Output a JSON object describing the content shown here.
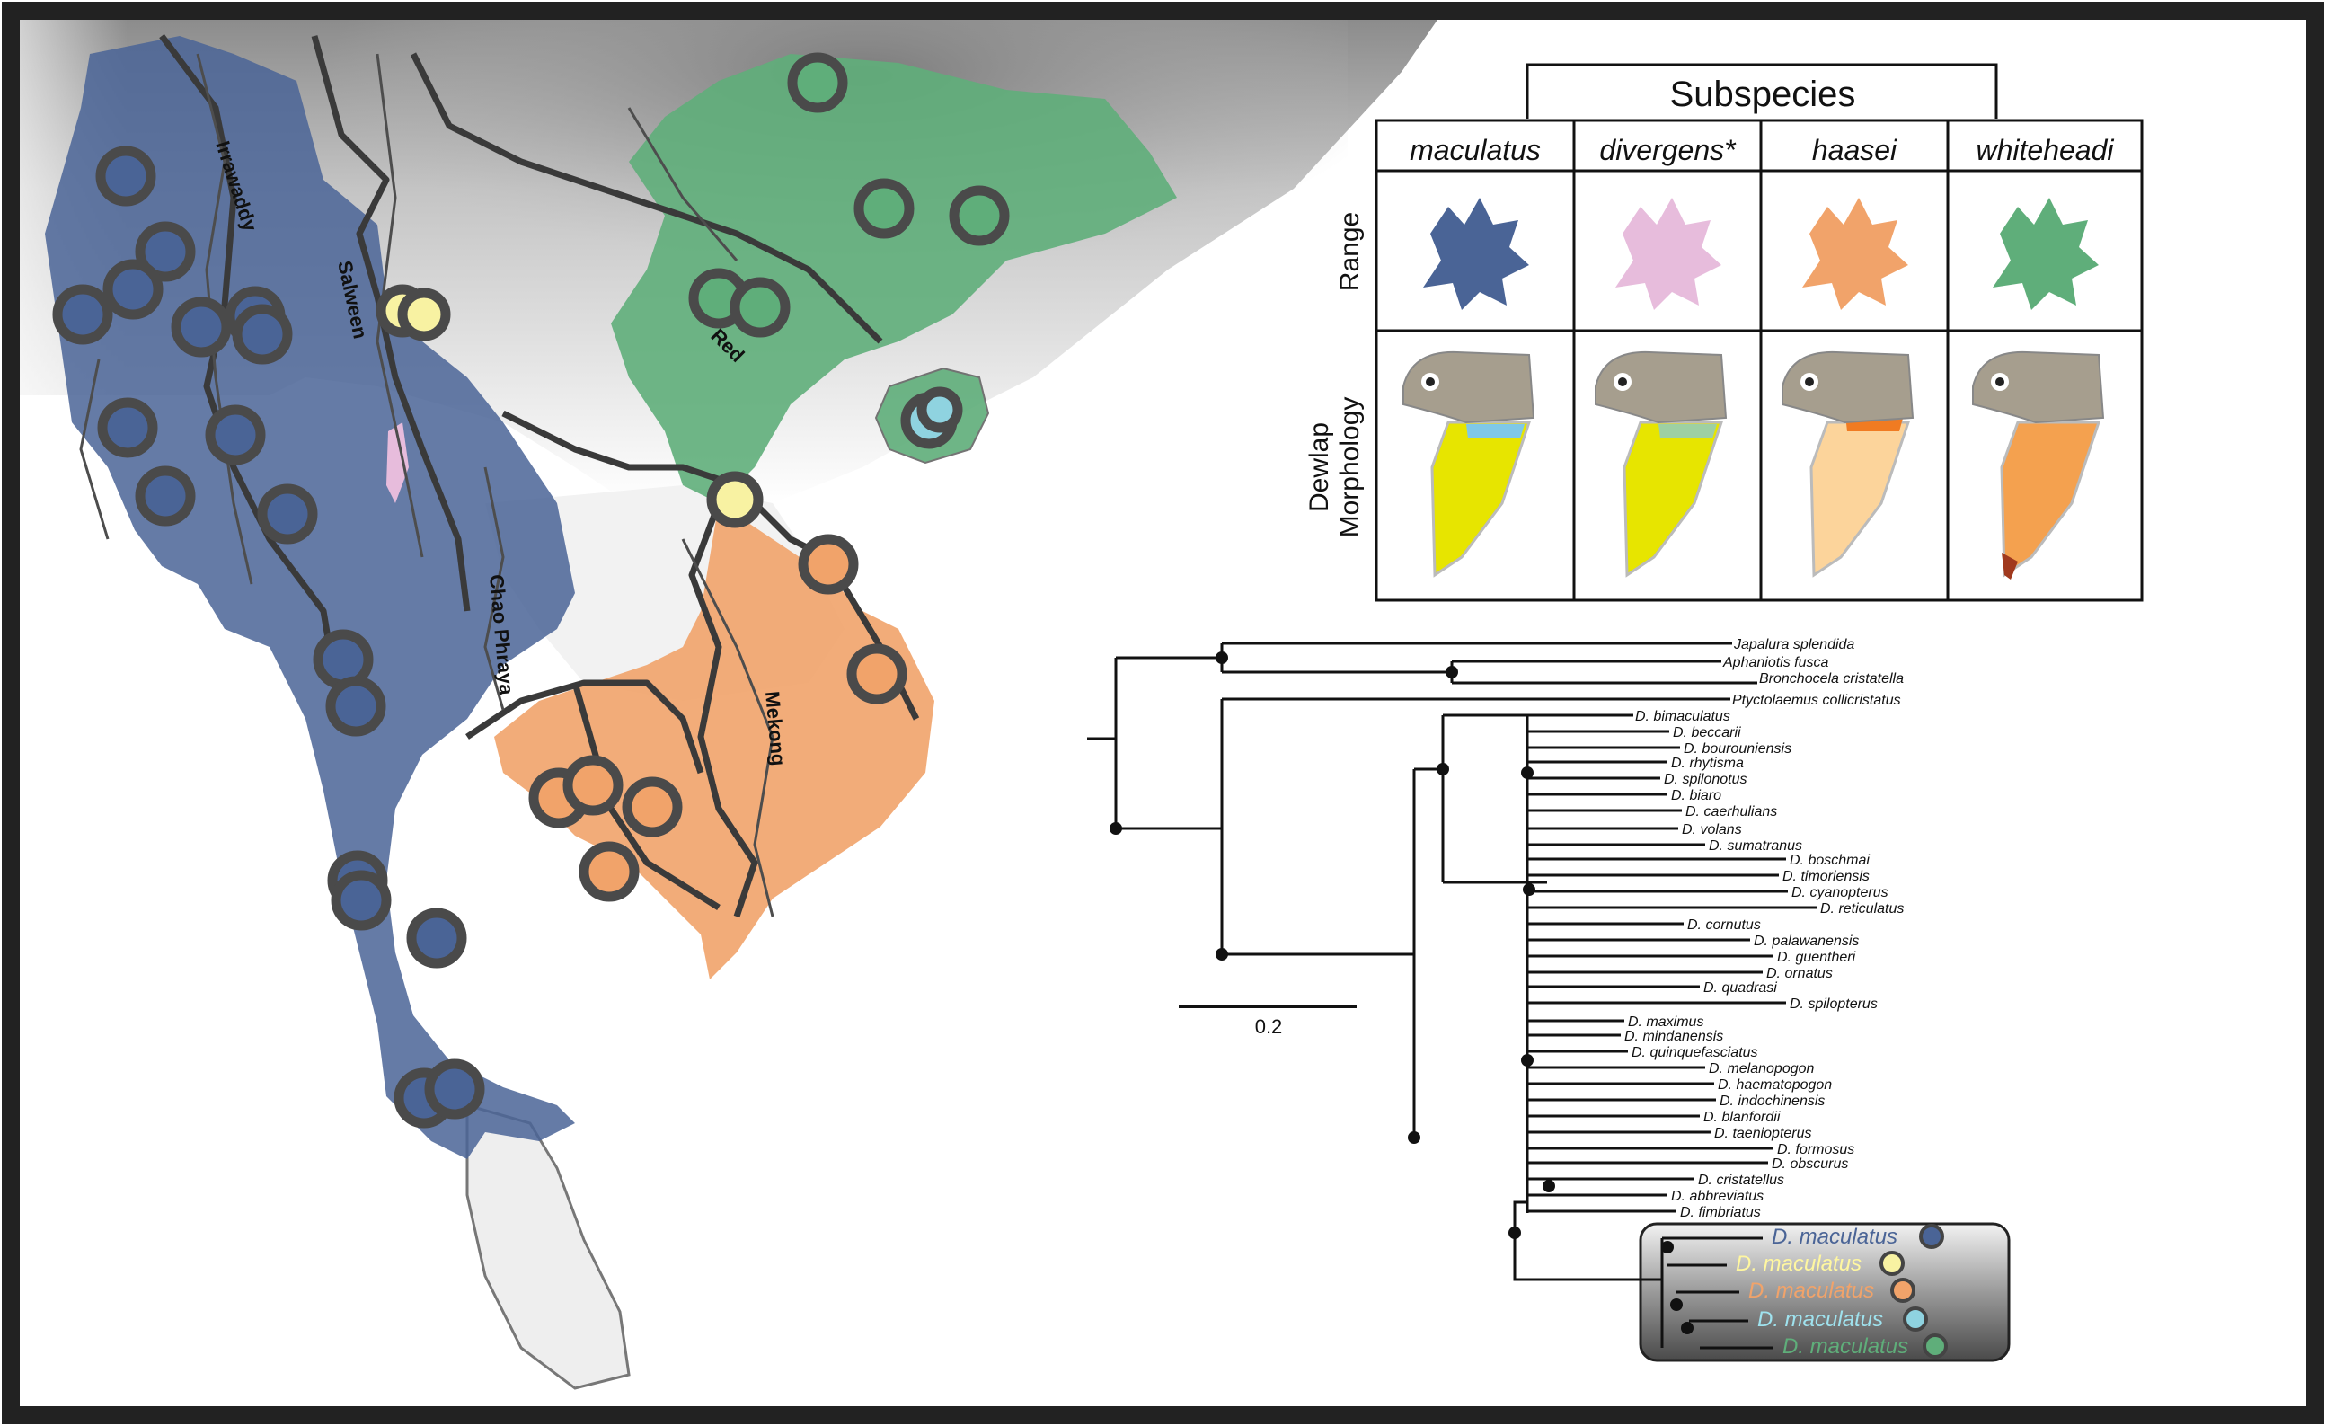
{
  "colors": {
    "maculatus": "#4a6496",
    "divergens": "#e7bcdc",
    "haasei": "#f1a36a",
    "whiteheadi": "#5fae7a",
    "hainan": "#8fd3e0",
    "yellow": "#f8f2a2",
    "frame": "#222222"
  },
  "map": {
    "rivers": [
      "Irrawaddy",
      "Salween",
      "Chao Phraya",
      "Red",
      "Mekong"
    ]
  },
  "panel": {
    "title": "Subspecies",
    "columns": [
      "maculatus",
      "divergens*",
      "haasei",
      "whiteheadi"
    ],
    "rows": {
      "range": "Range",
      "dewlap_line1": "Dewlap",
      "dewlap_line2": "Morphology"
    }
  },
  "tree": {
    "scale_label": "0.2",
    "tips": [
      "Japalura splendida",
      "Aphaniotis fusca",
      "Bronchocela cristatella",
      "Ptyctolaemus collicristatus",
      "D. bimaculatus",
      "D. beccarii",
      "D. bourouniensis",
      "D. rhytisma",
      "D. spilonotus",
      "D. biaro",
      "D. caerhulians",
      "D. volans",
      "D. sumatranus",
      "D. boschmai",
      "D. timoriensis",
      "D. cyanopterus",
      "D. reticulatus",
      "D. cornutus",
      "D. palawanensis",
      "D. guentheri",
      "D. ornatus",
      "D. quadrasi",
      "D. spilopterus",
      "D. maximus",
      "D. mindanensis",
      "D. quinquefasciatus",
      "D. melanopogon",
      "D. haematopogon",
      "D. indochinensis",
      "D. blanfordii",
      "D. taeniopterus",
      "D. formosus",
      "D. obscurus",
      "D. cristatellus",
      "D. abbreviatus",
      "D. fimbriatus"
    ],
    "highlight_tips": [
      "D. maculatus",
      "D. maculatus",
      "D. maculatus",
      "D. maculatus",
      "D. maculatus"
    ]
  }
}
